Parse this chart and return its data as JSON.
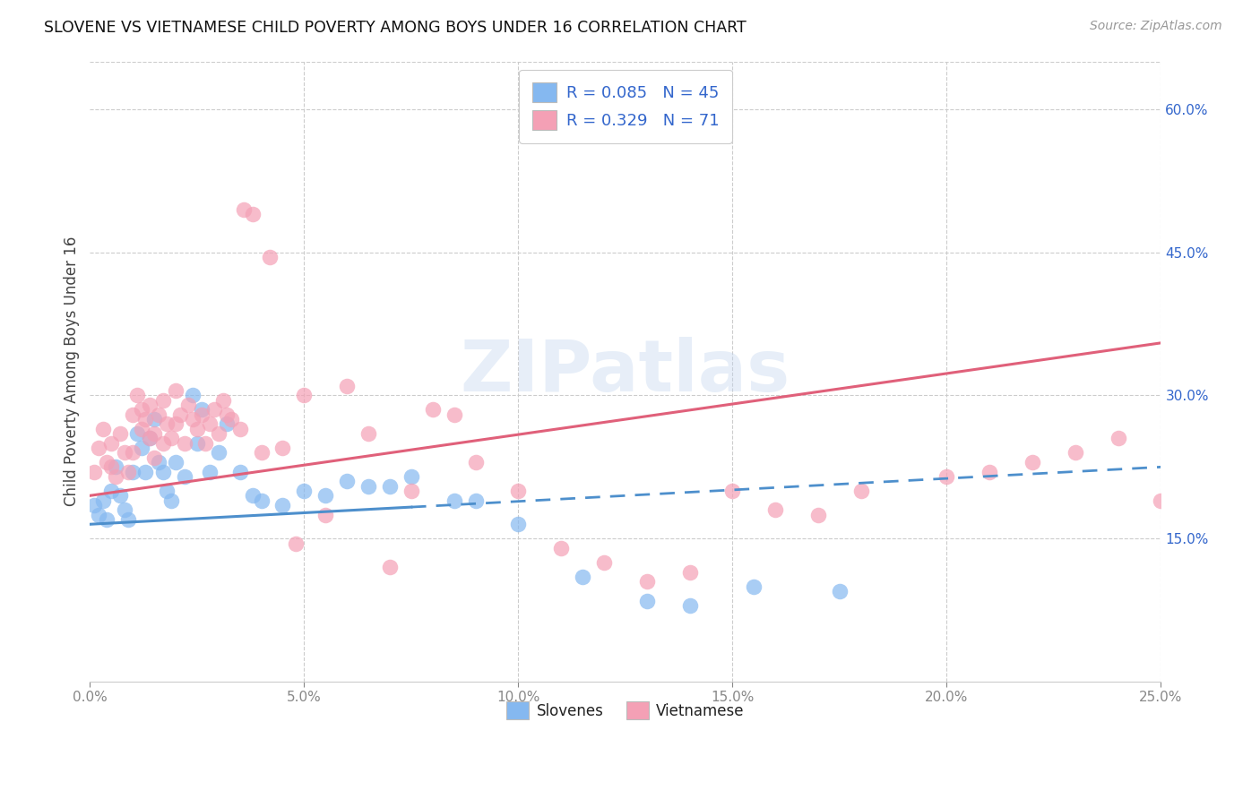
{
  "title": "SLOVENE VS VIETNAMESE CHILD POVERTY AMONG BOYS UNDER 16 CORRELATION CHART",
  "source": "Source: ZipAtlas.com",
  "ylabel": "Child Poverty Among Boys Under 16",
  "xlabel_ticks": [
    "0.0%",
    "5.0%",
    "10.0%",
    "15.0%",
    "20.0%",
    "25.0%"
  ],
  "ylabel_ticks_right": [
    "15.0%",
    "30.0%",
    "45.0%",
    "60.0%"
  ],
  "xlim": [
    0.0,
    25.0
  ],
  "ylim_data": [
    0.0,
    65.0
  ],
  "slovene_color": "#85b8f0",
  "vietnamese_color": "#f4a0b5",
  "slovene_R": 0.085,
  "slovene_N": 45,
  "vietnamese_R": 0.329,
  "vietnamese_N": 71,
  "trend_blue_color": "#4d8fcc",
  "trend_blue_dash_color": "#4d8fcc",
  "trend_pink_color": "#e0607a",
  "legend_R_N_color": "#3366cc",
  "background_color": "#ffffff",
  "watermark": "ZIPatlas",
  "blue_line_x0": 0.0,
  "blue_line_y0": 16.5,
  "blue_line_x1": 25.0,
  "blue_line_y1": 22.5,
  "blue_solid_end_x": 7.5,
  "pink_line_x0": 0.0,
  "pink_line_y0": 19.5,
  "pink_line_x1": 25.0,
  "pink_line_y1": 35.5,
  "slovene_x": [
    0.1,
    0.2,
    0.3,
    0.4,
    0.5,
    0.6,
    0.7,
    0.8,
    0.9,
    1.0,
    1.1,
    1.2,
    1.3,
    1.4,
    1.5,
    1.6,
    1.7,
    1.8,
    1.9,
    2.0,
    2.2,
    2.4,
    2.5,
    2.6,
    2.8,
    3.0,
    3.2,
    3.5,
    3.8,
    4.0,
    4.5,
    5.0,
    5.5,
    6.0,
    6.5,
    7.0,
    7.5,
    8.5,
    9.0,
    10.0,
    11.5,
    13.0,
    14.0,
    15.5,
    17.5
  ],
  "slovene_y": [
    18.5,
    17.5,
    19.0,
    17.0,
    20.0,
    22.5,
    19.5,
    18.0,
    17.0,
    22.0,
    26.0,
    24.5,
    22.0,
    25.5,
    27.5,
    23.0,
    22.0,
    20.0,
    19.0,
    23.0,
    21.5,
    30.0,
    25.0,
    28.5,
    22.0,
    24.0,
    27.0,
    22.0,
    19.5,
    19.0,
    18.5,
    20.0,
    19.5,
    21.0,
    20.5,
    20.5,
    21.5,
    19.0,
    19.0,
    16.5,
    11.0,
    8.5,
    8.0,
    10.0,
    9.5
  ],
  "vietnamese_x": [
    0.1,
    0.2,
    0.3,
    0.4,
    0.5,
    0.5,
    0.6,
    0.7,
    0.8,
    0.9,
    1.0,
    1.0,
    1.1,
    1.2,
    1.2,
    1.3,
    1.4,
    1.4,
    1.5,
    1.5,
    1.6,
    1.7,
    1.7,
    1.8,
    1.9,
    2.0,
    2.0,
    2.1,
    2.2,
    2.3,
    2.4,
    2.5,
    2.6,
    2.7,
    2.8,
    2.9,
    3.0,
    3.1,
    3.2,
    3.3,
    3.5,
    3.6,
    3.8,
    4.0,
    4.2,
    4.5,
    4.8,
    5.0,
    5.5,
    6.0,
    6.5,
    7.0,
    7.5,
    8.0,
    8.5,
    9.0,
    10.0,
    11.0,
    12.0,
    13.0,
    14.0,
    15.0,
    16.0,
    17.0,
    18.0,
    20.0,
    21.0,
    22.0,
    23.0,
    24.0,
    25.0
  ],
  "vietnamese_y": [
    22.0,
    24.5,
    26.5,
    23.0,
    22.5,
    25.0,
    21.5,
    26.0,
    24.0,
    22.0,
    24.0,
    28.0,
    30.0,
    26.5,
    28.5,
    27.5,
    25.5,
    29.0,
    26.0,
    23.5,
    28.0,
    25.0,
    29.5,
    27.0,
    25.5,
    27.0,
    30.5,
    28.0,
    25.0,
    29.0,
    27.5,
    26.5,
    28.0,
    25.0,
    27.0,
    28.5,
    26.0,
    29.5,
    28.0,
    27.5,
    26.5,
    49.5,
    49.0,
    24.0,
    44.5,
    24.5,
    14.5,
    30.0,
    17.5,
    31.0,
    26.0,
    12.0,
    20.0,
    28.5,
    28.0,
    23.0,
    20.0,
    14.0,
    12.5,
    10.5,
    11.5,
    20.0,
    18.0,
    17.5,
    20.0,
    21.5,
    22.0,
    23.0,
    24.0,
    25.5,
    19.0
  ]
}
